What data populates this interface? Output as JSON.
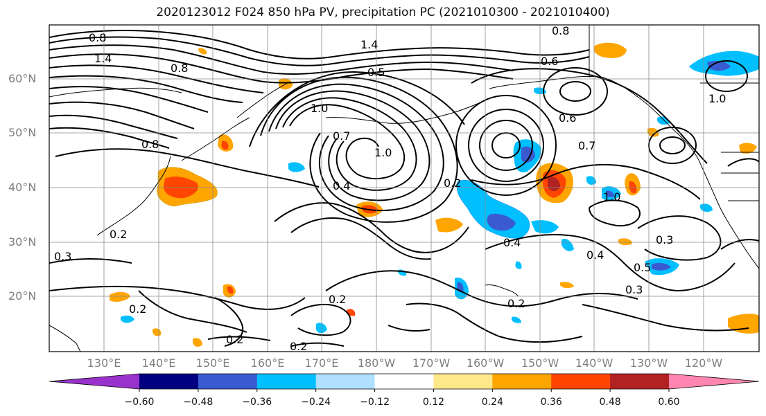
{
  "title": "2020123012 F024 850 hPa PV, precipitation PC (2021010300 - 2021010400)",
  "lat_labels": [
    "60°N",
    "50°N",
    "40°N",
    "30°N",
    "20°N"
  ],
  "lon_labels": [
    "130°E",
    "140°E",
    "150°E",
    "160°E",
    "170°E",
    "180°W",
    "170°W",
    "160°W",
    "150°W",
    "140°W",
    "130°W",
    "120°W"
  ],
  "contour_labels": [
    "0.8",
    "1.4",
    "0.8",
    "0.5",
    "1.4",
    "0.8",
    "0.6",
    "1.0",
    "0.6",
    "0.7",
    "1.0",
    "0.4",
    "0.2",
    "0.3",
    "0.4",
    "0.3",
    "0.5",
    "0.3",
    "0.2",
    "0.2",
    "0.2",
    "0.2",
    "0.2",
    "0.8",
    "1.0",
    "0.7",
    "0.2",
    "1.0",
    "0.4"
  ],
  "colorbar": {
    "ticks": [
      "−0.60",
      "−0.48",
      "−0.36",
      "−0.24",
      "−0.12",
      "0.12",
      "0.24",
      "0.36",
      "0.48",
      "0.60"
    ],
    "colors": [
      "#9932cc",
      "#000080",
      "#3a5bcf",
      "#00bfff",
      "#b0e0ff",
      "#ffffff",
      "#ffe88a",
      "#ffa500",
      "#ff4500",
      "#b22222",
      "#ff86b0"
    ]
  }
}
